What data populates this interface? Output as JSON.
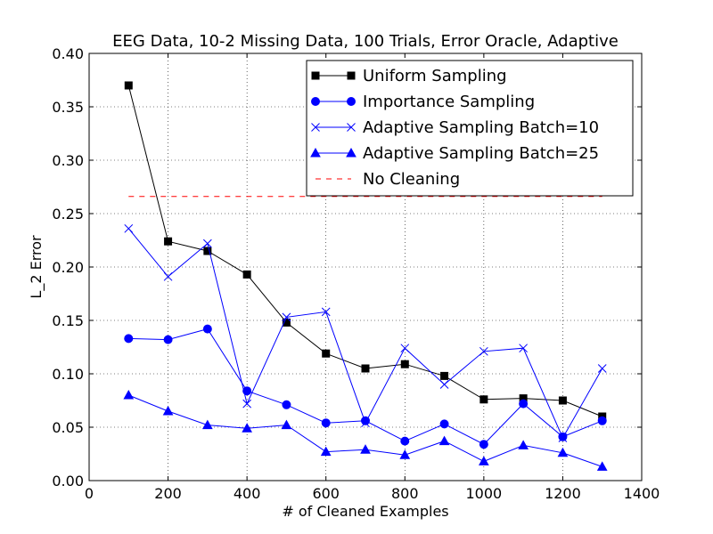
{
  "chart_data": {
    "type": "line",
    "title": "EEG Data, 10-2 Missing Data, 100 Trials, Error Oracle, Adaptive",
    "xlabel": "# of Cleaned Examples",
    "ylabel": "L_2 Error",
    "xlim": [
      0,
      1400
    ],
    "ylim": [
      0.0,
      0.4
    ],
    "xticks": [
      "0",
      "200",
      "400",
      "600",
      "800",
      "1000",
      "1200",
      "1400"
    ],
    "yticks": [
      "0.00",
      "0.05",
      "0.10",
      "0.15",
      "0.20",
      "0.25",
      "0.30",
      "0.35",
      "0.40"
    ],
    "grid": true,
    "legend_position": "top-right",
    "x": [
      100,
      200,
      300,
      400,
      500,
      600,
      700,
      800,
      900,
      1000,
      1100,
      1200,
      1300
    ],
    "series": [
      {
        "name": "Uniform Sampling",
        "color": "#000000",
        "marker": "square",
        "dash": "solid",
        "values": [
          0.37,
          0.224,
          0.215,
          0.193,
          0.148,
          0.119,
          0.105,
          0.109,
          0.098,
          0.076,
          0.077,
          0.075,
          0.06
        ]
      },
      {
        "name": "Importance Sampling",
        "color": "#0000ff",
        "marker": "circle",
        "dash": "solid",
        "values": [
          0.133,
          0.132,
          0.142,
          0.084,
          0.071,
          0.054,
          0.056,
          0.037,
          0.053,
          0.034,
          0.072,
          0.041,
          0.056
        ]
      },
      {
        "name": "Adaptive Sampling Batch=10",
        "color": "#0000ff",
        "marker": "x",
        "dash": "solid",
        "values": [
          0.236,
          0.191,
          0.222,
          0.072,
          0.153,
          0.158,
          0.054,
          0.124,
          0.09,
          0.121,
          0.124,
          0.04,
          0.105
        ]
      },
      {
        "name": "Adaptive Sampling Batch=25",
        "color": "#0000ff",
        "marker": "triangle",
        "dash": "solid",
        "values": [
          0.08,
          0.065,
          0.052,
          0.049,
          0.052,
          0.027,
          0.029,
          0.024,
          0.037,
          0.018,
          0.033,
          0.026,
          0.013
        ]
      },
      {
        "name": "No Cleaning",
        "color": "#ff0000",
        "marker": "none",
        "dash": "dashed",
        "values": [
          0.266,
          0.266,
          0.266,
          0.266,
          0.266,
          0.266,
          0.266,
          0.266,
          0.266,
          0.266,
          0.266,
          0.266,
          0.266
        ]
      }
    ]
  }
}
